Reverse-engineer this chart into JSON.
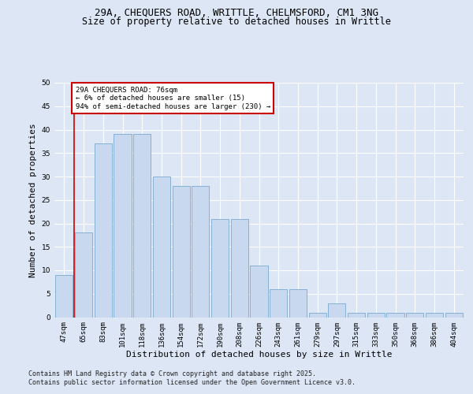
{
  "title_line1": "29A, CHEQUERS ROAD, WRITTLE, CHELMSFORD, CM1 3NG",
  "title_line2": "Size of property relative to detached houses in Writtle",
  "xlabel": "Distribution of detached houses by size in Writtle",
  "ylabel": "Number of detached properties",
  "categories": [
    "47sqm",
    "65sqm",
    "83sqm",
    "101sqm",
    "118sqm",
    "136sqm",
    "154sqm",
    "172sqm",
    "190sqm",
    "208sqm",
    "226sqm",
    "243sqm",
    "261sqm",
    "279sqm",
    "297sqm",
    "315sqm",
    "333sqm",
    "350sqm",
    "368sqm",
    "386sqm",
    "404sqm"
  ],
  "values": [
    9,
    18,
    37,
    39,
    39,
    30,
    28,
    28,
    21,
    21,
    11,
    6,
    6,
    1,
    3,
    1,
    1,
    1,
    1,
    1,
    1
  ],
  "bar_color": "#c8d8ee",
  "bar_edge_color": "#7aaad0",
  "vline_color": "#cc0000",
  "annotation_text": "29A CHEQUERS ROAD: 76sqm\n← 6% of detached houses are smaller (15)\n94% of semi-detached houses are larger (230) →",
  "annotation_box_color": "#ffffff",
  "annotation_box_edge": "#cc0000",
  "ylim": [
    0,
    50
  ],
  "yticks": [
    0,
    5,
    10,
    15,
    20,
    25,
    30,
    35,
    40,
    45,
    50
  ],
  "footer_line1": "Contains HM Land Registry data © Crown copyright and database right 2025.",
  "footer_line2": "Contains public sector information licensed under the Open Government Licence v3.0.",
  "background_color": "#dce6f5",
  "plot_bg_color": "#dce6f5",
  "grid_color": "#ffffff",
  "title_fontsize": 9,
  "subtitle_fontsize": 8.5,
  "tick_fontsize": 6.5,
  "label_fontsize": 8,
  "footer_fontsize": 6,
  "annotation_fontsize": 6.5
}
